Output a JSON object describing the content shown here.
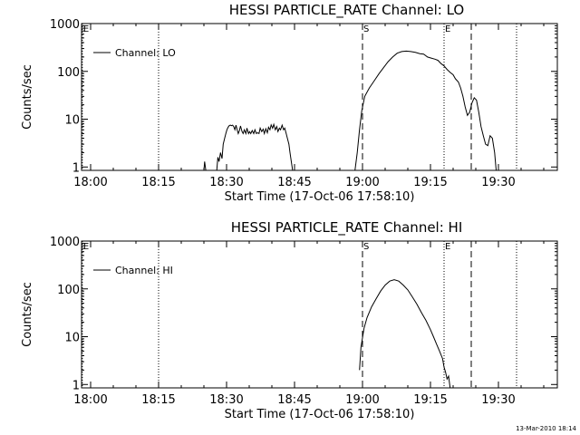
{
  "footer": {
    "date_stamp": "13-Mar-2010 18:14"
  },
  "chart_data": [
    {
      "type": "line",
      "title": "HESSI PARTICLE_RATE Channel: LO",
      "xlabel": "Start Time (17-Oct-06 17:58:10)",
      "ylabel": "Counts/sec",
      "y_scale": "log",
      "xlim": [
        "17:58",
        "19:43"
      ],
      "ylim": [
        0.85,
        1000
      ],
      "x_ticks": [
        "18:00",
        "18:15",
        "18:30",
        "18:45",
        "19:00",
        "19:15",
        "19:30"
      ],
      "y_ticks": [
        {
          "value": 1,
          "label": "1"
        },
        {
          "value": 10,
          "label": "10"
        },
        {
          "value": 100,
          "label": "100"
        },
        {
          "value": 1000,
          "label": "1000"
        }
      ],
      "legend": {
        "position": "top-left",
        "entries": [
          "Channel: LO"
        ]
      },
      "markers": [
        {
          "time": "17:58:10",
          "style": "dotted",
          "label": "E"
        },
        {
          "time": "18:15",
          "style": "dotted",
          "label": ""
        },
        {
          "time": "19:00",
          "style": "dashed",
          "label": "S"
        },
        {
          "time": "19:18",
          "style": "dotted",
          "label": "E"
        },
        {
          "time": "19:24",
          "style": "dashed",
          "label": ""
        },
        {
          "time": "19:34",
          "style": "dotted",
          "label": ""
        }
      ],
      "series": [
        {
          "name": "Channel: LO",
          "segments": [
            {
              "x": [
                "18:25:00",
                "18:25:10",
                "18:25:25"
              ],
              "y": [
                0.85,
                1.3,
                0.85
              ]
            },
            {
              "x": [
                "18:27:50",
                "18:28:05",
                "18:28:20",
                "18:28:40",
                "18:29:00",
                "18:29:15",
                "18:29:35",
                "18:29:50",
                "18:30:05",
                "18:30:20",
                "18:30:35",
                "18:30:50",
                "18:31:05",
                "18:31:20",
                "18:31:35",
                "18:31:50",
                "18:32:05",
                "18:32:20",
                "18:32:35",
                "18:32:50",
                "18:33:05",
                "18:33:25",
                "18:33:40",
                "18:33:55",
                "18:34:15",
                "18:34:30",
                "18:34:50",
                "18:35:05",
                "18:35:20",
                "18:35:40",
                "18:36:00",
                "18:36:15",
                "18:36:35",
                "18:36:50",
                "18:37:10",
                "18:37:25",
                "18:37:45",
                "18:38:05",
                "18:38:20",
                "18:38:40",
                "18:39:00",
                "18:39:15",
                "18:39:35",
                "18:39:50",
                "18:40:10",
                "18:40:25",
                "18:40:45",
                "18:41:05",
                "18:41:20",
                "18:41:40",
                "18:41:55",
                "18:42:15",
                "18:42:35",
                "18:42:50",
                "18:43:10",
                "18:43:25",
                "18:43:45",
                "18:44:00",
                "18:44:20",
                "18:44:35"
              ],
              "y": [
                0.85,
                1.6,
                1.3,
                2.0,
                1.5,
                3.0,
                4.0,
                5.0,
                6.0,
                6.8,
                7.3,
                7.5,
                7.3,
                7.5,
                7.0,
                6.0,
                7.5,
                6.0,
                5.0,
                5.8,
                7.2,
                5.5,
                5.0,
                6.0,
                5.0,
                6.5,
                5.0,
                5.5,
                5.0,
                5.8,
                5.0,
                6.0,
                5.0,
                5.2,
                5.0,
                6.5,
                5.5,
                6.2,
                5.0,
                6.3,
                5.2,
                6.8,
                6.0,
                7.6,
                6.5,
                7.8,
                6.0,
                7.0,
                5.5,
                6.5,
                6.0,
                7.5,
                6.0,
                6.5,
                5.0,
                4.0,
                3.0,
                2.0,
                1.2,
                0.85
              ]
            },
            {
              "x": [
                "18:58:20",
                "18:58:50",
                "18:59:20",
                "18:59:50",
                "19:00:30",
                "19:01:30",
                "19:02:40",
                "19:03:40",
                "19:04:40",
                "19:05:40",
                "19:06:40",
                "19:07:40",
                "19:08:40",
                "19:09:40",
                "19:10:40",
                "19:11:40",
                "19:12:40",
                "19:13:30",
                "19:14:20",
                "19:15:10",
                "19:16:00",
                "19:16:40",
                "19:17:20",
                "19:18:00",
                "19:18:40",
                "19:19:20",
                "19:20:00",
                "19:20:30",
                "19:21:10",
                "19:21:40",
                "19:22:10",
                "19:22:40",
                "19:23:10",
                "19:23:40",
                "19:24:10",
                "19:24:40",
                "19:25:10",
                "19:25:40",
                "19:26:10",
                "19:26:40",
                "19:27:10",
                "19:27:40",
                "19:28:10",
                "19:28:40",
                "19:29:10",
                "19:29:30"
              ],
              "y": [
                0.85,
                2.0,
                6.0,
                15,
                30,
                45,
                65,
                90,
                120,
                160,
                200,
                240,
                260,
                265,
                260,
                250,
                235,
                230,
                200,
                190,
                180,
                170,
                145,
                130,
                110,
                95,
                85,
                70,
                60,
                45,
                30,
                18,
                12,
                14,
                22,
                28,
                25,
                14,
                7,
                4.5,
                3,
                2.8,
                4.5,
                4,
                2,
                0.85
              ]
            }
          ]
        }
      ]
    },
    {
      "type": "line",
      "title": "HESSI PARTICLE_RATE Channel: HI",
      "xlabel": "Start Time (17-Oct-06 17:58:10)",
      "ylabel": "Counts/sec",
      "y_scale": "log",
      "xlim": [
        "17:58",
        "19:43"
      ],
      "ylim": [
        0.85,
        1000
      ],
      "x_ticks": [
        "18:00",
        "18:15",
        "18:30",
        "18:45",
        "19:00",
        "19:15",
        "19:30"
      ],
      "y_ticks": [
        {
          "value": 1,
          "label": "1"
        },
        {
          "value": 10,
          "label": "10"
        },
        {
          "value": 100,
          "label": "100"
        },
        {
          "value": 1000,
          "label": "1000"
        }
      ],
      "legend": {
        "position": "top-left",
        "entries": [
          "Channel: HI"
        ]
      },
      "markers": [
        {
          "time": "17:58:10",
          "style": "dotted",
          "label": "E"
        },
        {
          "time": "18:15",
          "style": "dotted",
          "label": ""
        },
        {
          "time": "19:00",
          "style": "dashed",
          "label": "S"
        },
        {
          "time": "19:18",
          "style": "dotted",
          "label": "E"
        },
        {
          "time": "19:24",
          "style": "dashed",
          "label": ""
        },
        {
          "time": "19:34",
          "style": "dotted",
          "label": ""
        }
      ],
      "series": [
        {
          "name": "Channel: HI",
          "segments": [
            {
              "x": [
                "18:59:20",
                "18:59:40",
                "19:00:20",
                "19:01:00",
                "19:02:00",
                "19:03:00",
                "19:04:00",
                "19:05:00",
                "19:06:00",
                "19:07:00",
                "19:08:00",
                "19:09:00",
                "19:10:00",
                "19:11:00",
                "19:12:00",
                "19:13:00",
                "19:14:00",
                "19:15:00",
                "19:15:40",
                "19:16:20",
                "19:17:00",
                "19:17:40",
                "19:18:00",
                "19:18:20",
                "19:18:40",
                "19:19:00",
                "19:19:20"
              ],
              "y": [
                2,
                6,
                15,
                25,
                42,
                62,
                90,
                120,
                145,
                155,
                145,
                120,
                95,
                68,
                48,
                32,
                22,
                14,
                10,
                7,
                5,
                3.5,
                2.3,
                1.8,
                1.3,
                1.5,
                0.85
              ]
            }
          ]
        }
      ]
    }
  ]
}
